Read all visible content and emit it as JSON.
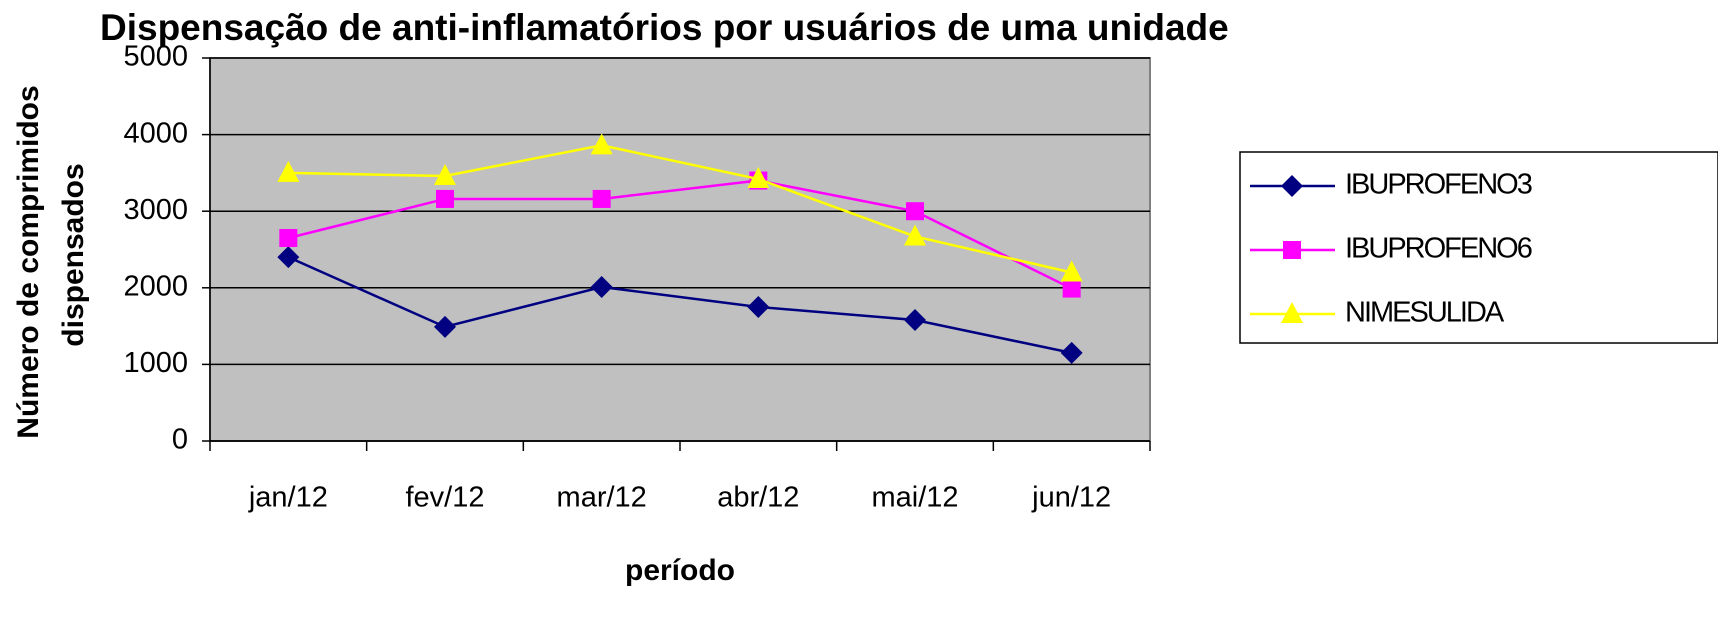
{
  "chart_data": {
    "type": "line",
    "title": "Dispensação de anti-inflamatórios por usuários de uma unidade",
    "x_label": "período",
    "y_label": [
      "Número de comprimidos",
      "dispensados"
    ],
    "categories": [
      "jan/12",
      "fev/12",
      "mar/12",
      "abr/12",
      "mai/12",
      "jun/12"
    ],
    "series": [
      {
        "name": "IBUPROFENO3",
        "color": "#000080",
        "marker": "diamond",
        "values": [
          2400,
          1490,
          2010,
          1750,
          1580,
          1150
        ]
      },
      {
        "name": "IBUPROFENO6",
        "color": "#ff00ff",
        "marker": "square",
        "values": [
          2650,
          3160,
          3160,
          3400,
          3000,
          1990
        ]
      },
      {
        "name": "NIMESULIDA",
        "color": "#ffff00",
        "marker": "triangle",
        "values": [
          3500,
          3460,
          3860,
          3420,
          2670,
          2200
        ]
      }
    ],
    "ylim": [
      0,
      5000
    ],
    "yticks": [
      0,
      1000,
      2000,
      3000,
      4000,
      5000
    ],
    "grid": true
  }
}
